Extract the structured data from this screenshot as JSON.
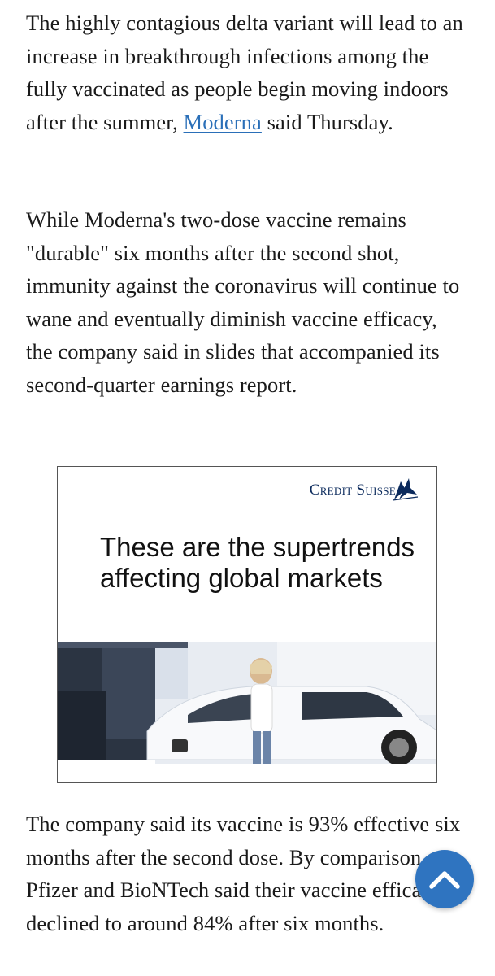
{
  "article": {
    "p1_before_link": "The highly contagious delta variant will lead to an increase in breakthrough infections among the fully vaccinated as people begin moving indoors after the summer, ",
    "p1_link": "Moderna",
    "p1_after_link": " said Thursday.",
    "p2": "While Moderna's two-dose vaccine remains \"durable\" six months after the second shot, immunity against the coronavirus will continue to wane and eventually diminish vaccine efficacy, the company said in slides that accompanied its second-quarter earnings report.",
    "p3": "The company said its vaccine is 93% effective six months after the second dose. By comparison, Pfizer and BioNTech said their vaccine efficacy declined to around 84% after six months."
  },
  "ad": {
    "brand": "Credit Suisse",
    "headline": "These are the supertrends affecting global markets",
    "brand_color": "#0b2a5c",
    "image_description": "woman-leaning-on-electric-car"
  },
  "controls": {
    "scroll_top_icon": "chevron-up-icon",
    "accent_color": "#2f74c0",
    "link_color": "#2a6fb8"
  }
}
